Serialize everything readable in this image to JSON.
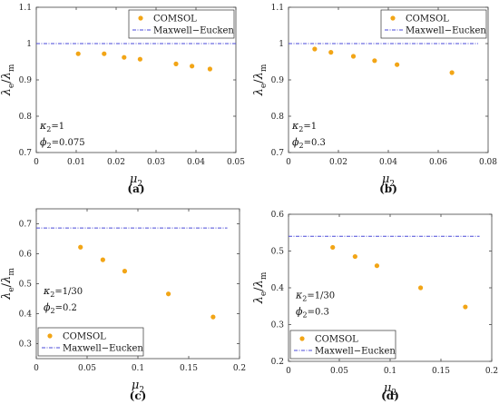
{
  "chart_data": [
    {
      "type": "scatter",
      "caption": "(a)",
      "xlabel_main": "μ",
      "xlabel_sub": "2",
      "ylabel_num": "λ",
      "ylabel_num_sub": "e",
      "ylabel_den": "λ",
      "ylabel_den_sub": "m",
      "xlim": [
        0,
        0.05
      ],
      "ylim": [
        0.7,
        1.1
      ],
      "xticks": [
        0,
        0.01,
        0.02,
        0.03,
        0.04,
        0.05
      ],
      "xtick_labels": [
        "0",
        "0.01",
        "0.02",
        "0.03",
        "0.04",
        "0.05"
      ],
      "yticks": [
        0.7,
        0.8,
        0.9,
        1.0,
        1.1
      ],
      "ytick_labels": [
        "0.7",
        "0.8",
        "0.9",
        "1",
        "1.1"
      ],
      "legend": {
        "placement": "top-right",
        "dots_label": "COMSOL",
        "line_label": "Maxwell−Eucken"
      },
      "annotation": [
        {
          "sym": "κ",
          "sub": "2",
          "val": "=1"
        },
        {
          "sym": "ϕ",
          "sub": "2",
          "val": "=0.075"
        }
      ],
      "annotation_placement": "bottom-left",
      "series": [
        {
          "name": "COMSOL",
          "kind": "points",
          "x": [
            0.0105,
            0.017,
            0.022,
            0.026,
            0.035,
            0.039,
            0.0435
          ],
          "y": [
            0.972,
            0.972,
            0.962,
            0.957,
            0.944,
            0.938,
            0.93
          ]
        },
        {
          "name": "Maxwell−Eucken",
          "kind": "line",
          "x": [
            0,
            0.05
          ],
          "y": [
            1.0,
            1.0
          ]
        }
      ]
    },
    {
      "type": "scatter",
      "caption": "(b)",
      "xlabel_main": "μ",
      "xlabel_sub": "2",
      "ylabel_num": "λ",
      "ylabel_num_sub": "e",
      "ylabel_den": "λ",
      "ylabel_den_sub": "m",
      "xlim": [
        0,
        0.08
      ],
      "ylim": [
        0.7,
        1.1
      ],
      "xticks": [
        0,
        0.02,
        0.04,
        0.06,
        0.08
      ],
      "xtick_labels": [
        "0",
        "0.02",
        "0.04",
        "0.06",
        "0.08"
      ],
      "yticks": [
        0.7,
        0.8,
        0.9,
        1.0,
        1.1
      ],
      "ytick_labels": [
        "0.7",
        "0.8",
        "0.9",
        "1",
        "1.1"
      ],
      "legend": {
        "placement": "top-right",
        "dots_label": "COMSOL",
        "line_label": "Maxwell−Eucken"
      },
      "annotation": [
        {
          "sym": "κ",
          "sub": "2",
          "val": "=1"
        },
        {
          "sym": "ϕ",
          "sub": "2",
          "val": "=0.3"
        }
      ],
      "annotation_placement": "bottom-left",
      "series": [
        {
          "name": "COMSOL",
          "kind": "points",
          "x": [
            0.0105,
            0.017,
            0.026,
            0.0345,
            0.0435,
            0.0655
          ],
          "y": [
            0.985,
            0.976,
            0.965,
            0.953,
            0.942,
            0.92
          ]
        },
        {
          "name": "Maxwell−Eucken",
          "kind": "line",
          "x": [
            0,
            0.076
          ],
          "y": [
            1.0,
            1.0
          ]
        }
      ]
    },
    {
      "type": "scatter",
      "caption": "(c)",
      "xlabel_main": "μ",
      "xlabel_sub": "2",
      "ylabel_num": "λ",
      "ylabel_num_sub": "e",
      "ylabel_den": "λ",
      "ylabel_den_sub": "m",
      "xlim": [
        0,
        0.2
      ],
      "ylim": [
        0.25,
        0.75
      ],
      "xticks": [
        0,
        0.05,
        0.1,
        0.15,
        0.2
      ],
      "xtick_labels": [
        "0",
        "0.05",
        "0.1",
        "0.15",
        "0.2"
      ],
      "yticks": [
        0.3,
        0.4,
        0.5,
        0.6,
        0.7
      ],
      "ytick_labels": [
        "0.3",
        "0.4",
        "0.5",
        "0.6",
        "0.7"
      ],
      "legend": {
        "placement": "bottom-left",
        "dots_label": "COMSOL",
        "line_label": "Maxwell−Eucken"
      },
      "annotation": [
        {
          "sym": "κ",
          "sub": "2",
          "val": "=1/30"
        },
        {
          "sym": "ϕ",
          "sub": "2",
          "val": "=0.2"
        }
      ],
      "annotation_placement": "middle-left",
      "series": [
        {
          "name": "COMSOL",
          "kind": "points",
          "x": [
            0.0435,
            0.0655,
            0.087,
            0.13,
            0.174
          ],
          "y": [
            0.622,
            0.58,
            0.542,
            0.466,
            0.389
          ]
        },
        {
          "name": "Maxwell−Eucken",
          "kind": "line",
          "x": [
            0,
            0.188
          ],
          "y": [
            0.686,
            0.686
          ]
        }
      ]
    },
    {
      "type": "scatter",
      "caption": "(d)",
      "xlabel_main": "μ",
      "xlabel_sub": "2",
      "ylabel_num": "λ",
      "ylabel_num_sub": "e",
      "ylabel_den": "λ",
      "ylabel_den_sub": "m",
      "xlim": [
        0,
        0.2
      ],
      "ylim": [
        0.2,
        0.6
      ],
      "xticks": [
        0,
        0.05,
        0.1,
        0.15,
        0.2
      ],
      "xtick_labels": [
        "0",
        "0.05",
        "0.1",
        "0.15",
        "0.2"
      ],
      "yticks": [
        0.2,
        0.3,
        0.4,
        0.5,
        0.6
      ],
      "ytick_labels": [
        "0.2",
        "0.3",
        "0.4",
        "0.5",
        "0.6"
      ],
      "legend": {
        "placement": "bottom-left",
        "dots_label": "COMSOL",
        "line_label": "Maxwell−Eucken"
      },
      "annotation": [
        {
          "sym": "κ",
          "sub": "2",
          "val": "=1/30"
        },
        {
          "sym": "ϕ",
          "sub": "2",
          "val": "=0.3"
        }
      ],
      "annotation_placement": "middle-left",
      "series": [
        {
          "name": "COMSOL",
          "kind": "points",
          "x": [
            0.0435,
            0.0655,
            0.087,
            0.13,
            0.174
          ],
          "y": [
            0.51,
            0.485,
            0.46,
            0.4,
            0.348
          ]
        },
        {
          "name": "Maxwell−Eucken",
          "kind": "line",
          "x": [
            0,
            0.188
          ],
          "y": [
            0.54,
            0.54
          ]
        }
      ]
    }
  ],
  "colors": {
    "points": "#f2a516",
    "line": "#4a4ad8",
    "axis": "#444444"
  },
  "grid": false
}
